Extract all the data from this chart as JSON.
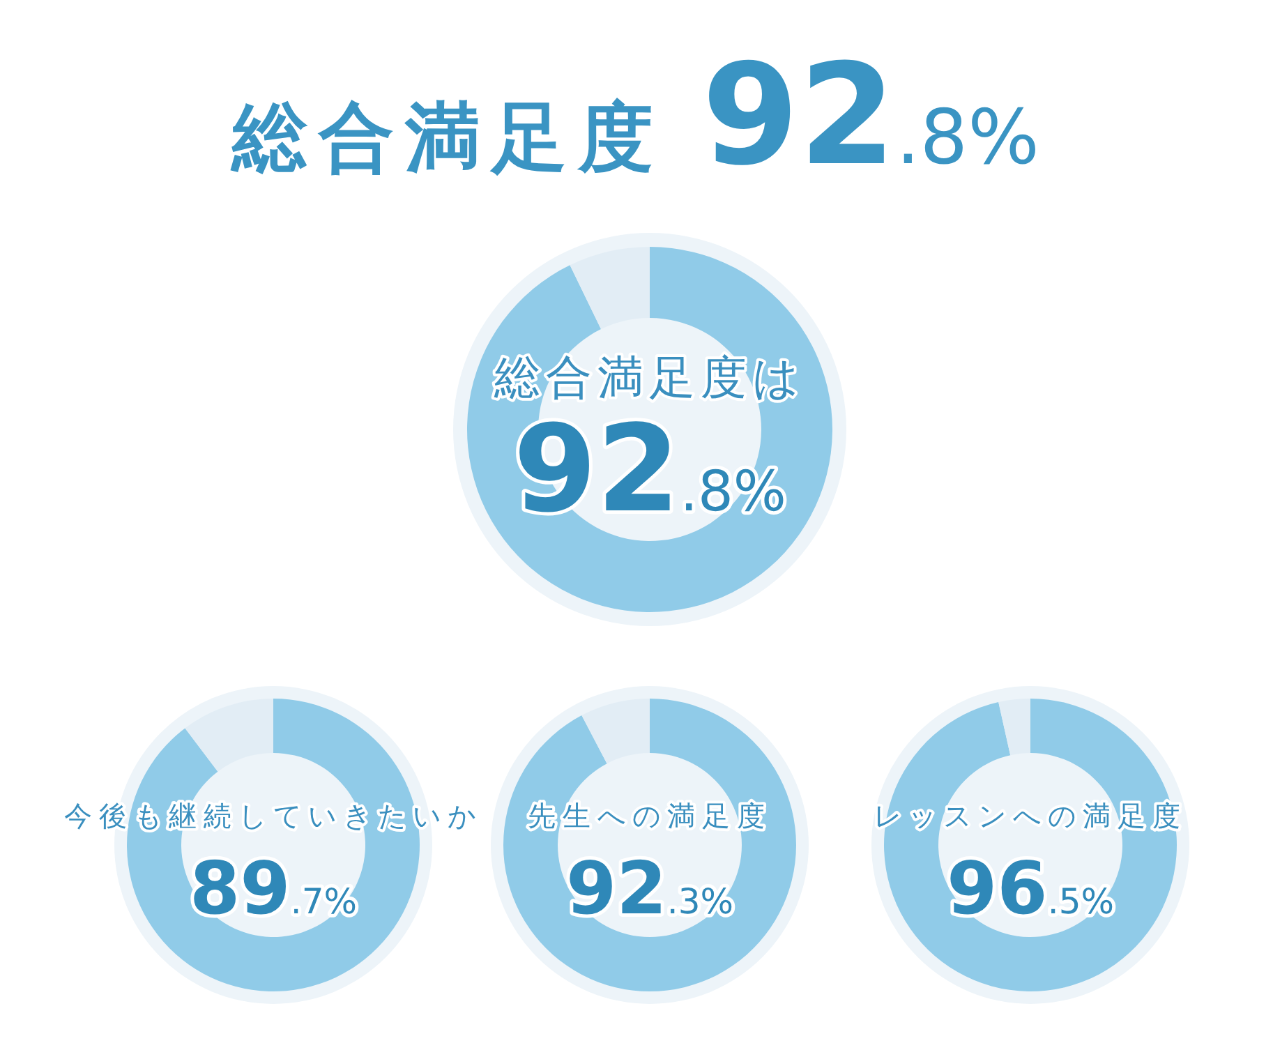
{
  "chart_data": [
    {
      "type": "donut",
      "title": "総合満足度 92.8%",
      "subtitle": "総合満足度は",
      "categories": [
        null,
        null
      ],
      "values": [
        92.8,
        7.2
      ],
      "colors": [
        "#90cbe8",
        "#e2edf5"
      ],
      "annotations": [
        "92.8%"
      ]
    },
    {
      "type": "donut",
      "title": "今後も継続していきたいか",
      "categories": [
        null,
        null
      ],
      "values": [
        89.7,
        10.3
      ],
      "colors": [
        "#90cbe8",
        "#e2edf5"
      ],
      "annotations": [
        "89.7%"
      ]
    },
    {
      "type": "donut",
      "title": "先生への満足度",
      "categories": [
        null,
        null
      ],
      "values": [
        92.3,
        7.7
      ],
      "colors": [
        "#90cbe8",
        "#e2edf5"
      ],
      "annotations": [
        "92.3%"
      ]
    },
    {
      "type": "donut",
      "title": "レッスンへの満足度",
      "categories": [
        null,
        null
      ],
      "values": [
        96.5,
        3.5
      ],
      "colors": [
        "#90cbe8",
        "#e2edf5"
      ],
      "annotations": [
        "96.5%"
      ]
    }
  ]
}
